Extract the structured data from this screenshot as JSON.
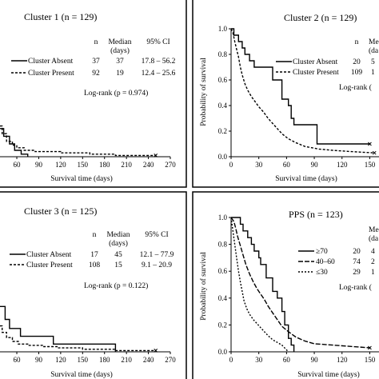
{
  "figure": {
    "panels": [
      {
        "title": "Cluster 1 (n = 129)",
        "xlabel": "Survival time (days)",
        "ylabel": "",
        "xticks": [
          "60",
          "90",
          "120",
          "150",
          "180",
          "210",
          "240",
          "270"
        ],
        "yticks": [],
        "table_headers": [
          "n",
          "Median",
          "(days)",
          "95% CI"
        ],
        "table_rows": [
          {
            "label": "Cluster Absent",
            "n": "37",
            "median": "37",
            "ci": "17.8 – 56.2"
          },
          {
            "label": "Cluster Present",
            "n": "92",
            "median": "19",
            "ci": "12.4 – 25.6"
          }
        ],
        "logrank": "Log-rank (p = 0.974)"
      },
      {
        "title": "Cluster 2 (n = 129)",
        "xlabel": "Survival time (days)",
        "ylabel": "Probability of survival",
        "xticks": [
          "0",
          "30",
          "60",
          "90",
          "120",
          "150"
        ],
        "yticks": [
          "0.0",
          "0.2",
          "0.4",
          "0.6",
          "0.8",
          "1.0"
        ],
        "table_headers": [
          "n",
          "Me",
          "(da"
        ],
        "table_rows": [
          {
            "label": "Cluster Absent",
            "n": "20",
            "median": "5",
            "ci": ""
          },
          {
            "label": "Cluster Present",
            "n": "109",
            "median": "1",
            "ci": ""
          }
        ],
        "logrank": "Log-rank ("
      },
      {
        "title": "Cluster 3 (n = 125)",
        "xlabel": "Survival time (days)",
        "ylabel": "",
        "xticks": [
          "60",
          "90",
          "120",
          "150",
          "180",
          "210",
          "240",
          "270"
        ],
        "yticks": [],
        "table_headers": [
          "n",
          "Median",
          "(days)",
          "95% CI"
        ],
        "table_rows": [
          {
            "label": "Cluster Absent",
            "n": "17",
            "median": "45",
            "ci": "12.1 – 77.9"
          },
          {
            "label": "Cluster Present",
            "n": "108",
            "median": "15",
            "ci": "9.1 – 20.9"
          }
        ],
        "logrank": "Log-rank (p = 0.122)"
      },
      {
        "title": "PPS (n = 123)",
        "xlabel": "Survival time (days)",
        "ylabel": "Probability of survival",
        "xticks": [
          "0",
          "30",
          "60",
          "90",
          "120",
          "150"
        ],
        "yticks": [
          "0.0",
          "0.2",
          "0.4",
          "0.6",
          "0.8",
          "1.0"
        ],
        "table_headers": [
          "n",
          "Me",
          "(da"
        ],
        "table_rows": [
          {
            "label": "≥70",
            "n": "20",
            "median": "4",
            "ci": ""
          },
          {
            "label": "40–60",
            "n": "74",
            "median": "2",
            "ci": ""
          },
          {
            "label": "≤30",
            "n": "29",
            "median": "1",
            "ci": ""
          }
        ],
        "logrank": "Log-rank ("
      }
    ]
  },
  "chart_data": [
    {
      "type": "line",
      "title": "Cluster 1 (n = 129)",
      "xlabel": "Survival time (days)",
      "ylabel": "",
      "xlim": [
        37,
        270
      ],
      "ylim": [
        0,
        1
      ],
      "series": [
        {
          "name": "Cluster Absent",
          "style": "solid",
          "points": [
            [
              37,
              0.22
            ],
            [
              42,
              0.22
            ],
            [
              42,
              0.16
            ],
            [
              50,
              0.16
            ],
            [
              50,
              0.1
            ],
            [
              57,
              0.1
            ],
            [
              57,
              0.05
            ],
            [
              66,
              0.05
            ],
            [
              66,
              0.02
            ],
            [
              75,
              0.02
            ],
            [
              75,
              0.0
            ]
          ]
        },
        {
          "name": "Cluster Present",
          "style": "dashed",
          "points": [
            [
              37,
              0.24
            ],
            [
              40,
              0.24
            ],
            [
              40,
              0.18
            ],
            [
              46,
              0.18
            ],
            [
              46,
              0.12
            ],
            [
              54,
              0.12
            ],
            [
              54,
              0.09
            ],
            [
              60,
              0.09
            ],
            [
              60,
              0.07
            ],
            [
              70,
              0.07
            ],
            [
              70,
              0.05
            ],
            [
              85,
              0.05
            ],
            [
              85,
              0.04
            ],
            [
              120,
              0.04
            ],
            [
              120,
              0.03
            ],
            [
              160,
              0.03
            ],
            [
              160,
              0.02
            ],
            [
              195,
              0.02
            ],
            [
              195,
              0.01
            ],
            [
              250,
              0.01
            ]
          ]
        }
      ]
    },
    {
      "type": "line",
      "title": "Cluster 2 (n = 129)",
      "xlabel": "Survival time (days)",
      "ylabel": "Probability of survival",
      "xlim": [
        0,
        160
      ],
      "ylim": [
        0,
        1
      ],
      "series": [
        {
          "name": "Cluster Absent",
          "style": "solid",
          "points": [
            [
              0,
              1.0
            ],
            [
              3,
              1.0
            ],
            [
              3,
              0.95
            ],
            [
              8,
              0.95
            ],
            [
              8,
              0.9
            ],
            [
              12,
              0.9
            ],
            [
              12,
              0.85
            ],
            [
              15,
              0.85
            ],
            [
              15,
              0.8
            ],
            [
              20,
              0.8
            ],
            [
              20,
              0.75
            ],
            [
              25,
              0.75
            ],
            [
              25,
              0.7
            ],
            [
              45,
              0.7
            ],
            [
              45,
              0.6
            ],
            [
              55,
              0.6
            ],
            [
              55,
              0.45
            ],
            [
              62,
              0.45
            ],
            [
              62,
              0.4
            ],
            [
              65,
              0.4
            ],
            [
              65,
              0.3
            ],
            [
              68,
              0.3
            ],
            [
              68,
              0.25
            ],
            [
              93,
              0.25
            ],
            [
              93,
              0.1
            ],
            [
              150,
              0.1
            ]
          ]
        },
        {
          "name": "Cluster Present",
          "style": "dashed",
          "points": [
            [
              0,
              1.0
            ],
            [
              2,
              0.97
            ],
            [
              4,
              0.9
            ],
            [
              6,
              0.84
            ],
            [
              8,
              0.78
            ],
            [
              10,
              0.7
            ],
            [
              12,
              0.64
            ],
            [
              15,
              0.57
            ],
            [
              18,
              0.52
            ],
            [
              22,
              0.47
            ],
            [
              26,
              0.43
            ],
            [
              30,
              0.39
            ],
            [
              35,
              0.35
            ],
            [
              40,
              0.3
            ],
            [
              45,
              0.26
            ],
            [
              50,
              0.22
            ],
            [
              55,
              0.18
            ],
            [
              62,
              0.14
            ],
            [
              70,
              0.11
            ],
            [
              80,
              0.08
            ],
            [
              95,
              0.06
            ],
            [
              110,
              0.05
            ],
            [
              130,
              0.04
            ],
            [
              155,
              0.03
            ]
          ]
        }
      ]
    },
    {
      "type": "line",
      "title": "Cluster 3 (n = 125)",
      "xlabel": "Survival time (days)",
      "ylabel": "",
      "xlim": [
        37,
        270
      ],
      "ylim": [
        0,
        1
      ],
      "series": [
        {
          "name": "Cluster Absent",
          "style": "solid",
          "points": [
            [
              37,
              0.35
            ],
            [
              44,
              0.35
            ],
            [
              44,
              0.25
            ],
            [
              50,
              0.25
            ],
            [
              50,
              0.18
            ],
            [
              65,
              0.18
            ],
            [
              65,
              0.12
            ],
            [
              110,
              0.12
            ],
            [
              110,
              0.06
            ],
            [
              195,
              0.06
            ],
            [
              195,
              0.0
            ]
          ]
        },
        {
          "name": "Cluster Present",
          "style": "dashed",
          "points": [
            [
              37,
              0.2
            ],
            [
              40,
              0.2
            ],
            [
              40,
              0.15
            ],
            [
              46,
              0.15
            ],
            [
              46,
              0.11
            ],
            [
              54,
              0.11
            ],
            [
              54,
              0.08
            ],
            [
              62,
              0.08
            ],
            [
              62,
              0.06
            ],
            [
              75,
              0.06
            ],
            [
              75,
              0.05
            ],
            [
              95,
              0.05
            ],
            [
              95,
              0.04
            ],
            [
              115,
              0.04
            ],
            [
              115,
              0.03
            ],
            [
              150,
              0.03
            ],
            [
              150,
              0.02
            ],
            [
              195,
              0.02
            ],
            [
              195,
              0.01
            ],
            [
              250,
              0.01
            ]
          ]
        }
      ]
    },
    {
      "type": "line",
      "title": "PPS (n = 123)",
      "xlabel": "Survival time (days)",
      "ylabel": "Probability of survival",
      "xlim": [
        0,
        160
      ],
      "ylim": [
        0,
        1
      ],
      "series": [
        {
          "name": "≥70",
          "style": "solid",
          "points": [
            [
              0,
              1.0
            ],
            [
              10,
              1.0
            ],
            [
              10,
              0.95
            ],
            [
              13,
              0.95
            ],
            [
              13,
              0.9
            ],
            [
              18,
              0.9
            ],
            [
              18,
              0.85
            ],
            [
              22,
              0.85
            ],
            [
              22,
              0.8
            ],
            [
              25,
              0.8
            ],
            [
              25,
              0.75
            ],
            [
              30,
              0.75
            ],
            [
              30,
              0.7
            ],
            [
              32,
              0.7
            ],
            [
              32,
              0.65
            ],
            [
              38,
              0.65
            ],
            [
              38,
              0.55
            ],
            [
              45,
              0.55
            ],
            [
              45,
              0.45
            ],
            [
              50,
              0.45
            ],
            [
              50,
              0.4
            ],
            [
              55,
              0.4
            ],
            [
              55,
              0.3
            ],
            [
              58,
              0.3
            ],
            [
              58,
              0.2
            ],
            [
              62,
              0.2
            ],
            [
              62,
              0.1
            ],
            [
              65,
              0.1
            ],
            [
              65,
              0.05
            ],
            [
              68,
              0.05
            ],
            [
              68,
              0.0
            ]
          ]
        },
        {
          "name": "40–60",
          "style": "long-dash",
          "points": [
            [
              0,
              1.0
            ],
            [
              3,
              0.97
            ],
            [
              5,
              0.92
            ],
            [
              7,
              0.86
            ],
            [
              10,
              0.79
            ],
            [
              13,
              0.72
            ],
            [
              16,
              0.65
            ],
            [
              20,
              0.58
            ],
            [
              24,
              0.52
            ],
            [
              28,
              0.47
            ],
            [
              32,
              0.43
            ],
            [
              36,
              0.39
            ],
            [
              40,
              0.34
            ],
            [
              45,
              0.29
            ],
            [
              50,
              0.24
            ],
            [
              55,
              0.19
            ],
            [
              62,
              0.15
            ],
            [
              70,
              0.11
            ],
            [
              80,
              0.08
            ],
            [
              90,
              0.06
            ],
            [
              110,
              0.05
            ],
            [
              130,
              0.04
            ],
            [
              150,
              0.03
            ]
          ]
        },
        {
          "name": "≤30",
          "style": "short-dash",
          "points": [
            [
              0,
              1.0
            ],
            [
              2,
              0.9
            ],
            [
              4,
              0.8
            ],
            [
              6,
              0.7
            ],
            [
              8,
              0.6
            ],
            [
              10,
              0.52
            ],
            [
              12,
              0.45
            ],
            [
              14,
              0.38
            ],
            [
              17,
              0.32
            ],
            [
              20,
              0.28
            ],
            [
              24,
              0.24
            ],
            [
              28,
              0.21
            ],
            [
              32,
              0.18
            ],
            [
              36,
              0.15
            ],
            [
              40,
              0.12
            ],
            [
              45,
              0.09
            ],
            [
              50,
              0.07
            ],
            [
              55,
              0.05
            ],
            [
              62,
              0.0
            ]
          ]
        }
      ]
    }
  ]
}
